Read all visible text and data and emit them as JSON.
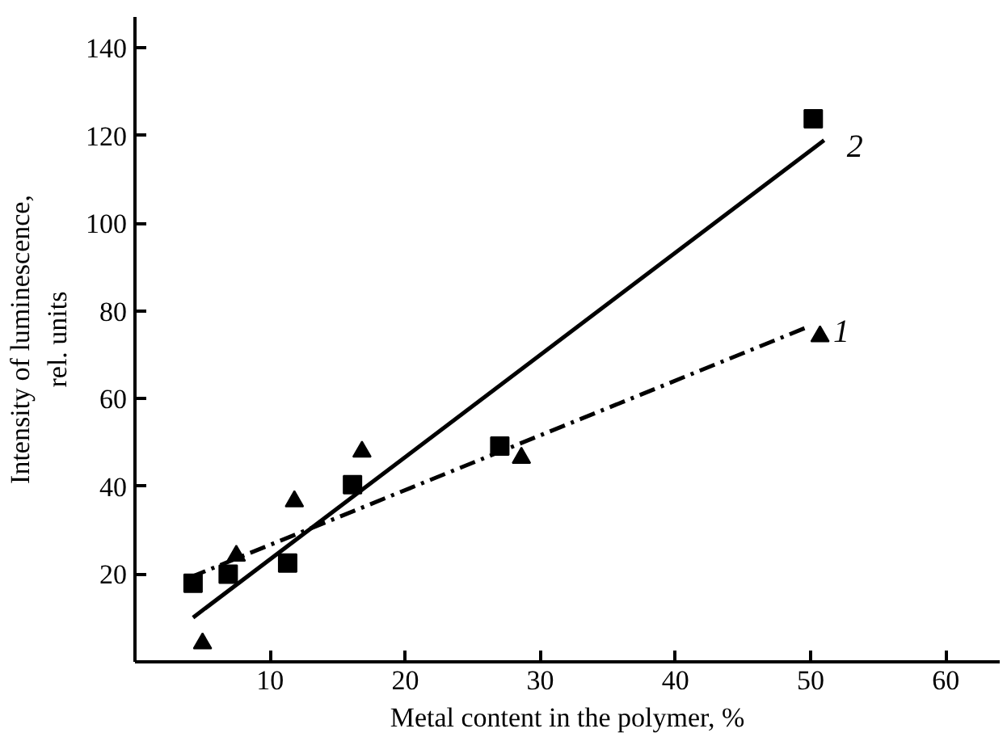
{
  "chart_data": {
    "type": "scatter",
    "xlabel": "Metal content in the polymer, %",
    "ylabel": "Intensity of luminescence,\nrel. units",
    "xlim": [
      0,
      64
    ],
    "ylim": [
      0,
      147
    ],
    "xticks": [
      10,
      20,
      30,
      40,
      50,
      60
    ],
    "yticks": [
      20,
      40,
      60,
      80,
      100,
      120,
      140
    ],
    "grid": false,
    "series": [
      {
        "marker": "square",
        "color": "#000000",
        "x": [
          4.3,
          6.9,
          11.3,
          16.1,
          27.0,
          50.2
        ],
        "values": [
          17.9,
          20.0,
          22.5,
          40.4,
          49.2,
          123.8
        ]
      },
      {
        "marker": "triangle",
        "color": "#000000",
        "x": [
          5.0,
          7.5,
          11.8,
          16.8,
          28.6,
          50.7
        ],
        "values": [
          4.2,
          24.2,
          36.6,
          47.9,
          46.5,
          74.2
        ]
      },
      {
        "type": "line",
        "name": "2",
        "line_style": "solid",
        "color": "#000000",
        "x": [
          4.3,
          51.0
        ],
        "values": [
          10.1,
          118.9
        ]
      },
      {
        "type": "line",
        "name": "1",
        "line_style": "dashdot",
        "color": "#000000",
        "x": [
          4.1,
          50.0
        ],
        "values": [
          19.3,
          76.6
        ]
      }
    ]
  }
}
